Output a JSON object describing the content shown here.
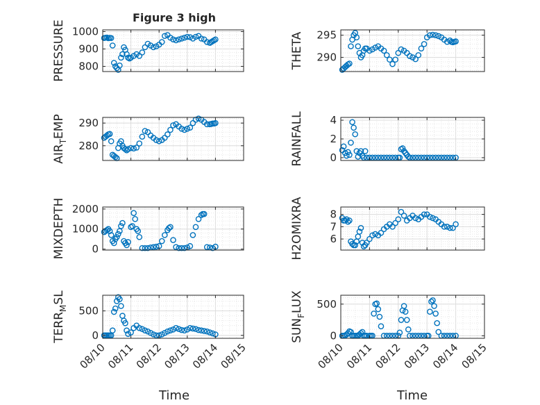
{
  "figure_title": "Figure 3 high",
  "x_axis_title": "Time",
  "x_tick_labels": [
    "08/10",
    "08/11",
    "08/12",
    "08/13",
    "08/14",
    "08/15"
  ],
  "marker_color": "#0072BD",
  "chart_data": [
    {
      "type": "scatter",
      "id": "pressure",
      "ylabel": "PRESSURE",
      "ylabel_sub": null,
      "xlim": [
        0,
        5
      ],
      "ylim": [
        770,
        1010
      ],
      "yticks": [
        800,
        900,
        1000
      ],
      "ytick_labels": [
        "800",
        "900",
        "1000"
      ],
      "x_show_ticklabels": false,
      "grid": true,
      "x": [
        0.05,
        0.1,
        0.15,
        0.2,
        0.25,
        0.3,
        0.35,
        0.4,
        0.45,
        0.5,
        0.55,
        0.6,
        0.65,
        0.7,
        0.75,
        0.8,
        0.85,
        0.9,
        0.95,
        1.0,
        1.1,
        1.2,
        1.3,
        1.4,
        1.5,
        1.6,
        1.7,
        1.8,
        1.9,
        2.0,
        2.1,
        2.2,
        2.3,
        2.4,
        2.5,
        2.6,
        2.7,
        2.8,
        2.9,
        3.0,
        3.1,
        3.2,
        3.3,
        3.4,
        3.5,
        3.6,
        3.7,
        3.8,
        3.85,
        3.9,
        3.95,
        4.0
      ],
      "y": [
        963,
        965,
        966,
        962,
        964,
        963,
        920,
        820,
        800,
        790,
        780,
        805,
        850,
        870,
        910,
        895,
        870,
        850,
        845,
        850,
        860,
        870,
        860,
        880,
        910,
        930,
        920,
        910,
        915,
        925,
        940,
        975,
        980,
        965,
        955,
        950,
        955,
        960,
        965,
        970,
        968,
        960,
        970,
        975,
        960,
        955,
        940,
        935,
        940,
        945,
        950,
        955
      ]
    },
    {
      "type": "scatter",
      "id": "theta",
      "ylabel": "THETA",
      "ylabel_sub": null,
      "xlim": [
        0,
        5
      ],
      "ylim": [
        286.8,
        296.2
      ],
      "yticks": [
        290,
        295
      ],
      "ytick_labels": [
        "290",
        "295"
      ],
      "x_show_ticklabels": false,
      "grid": true,
      "x": [
        0.05,
        0.1,
        0.15,
        0.2,
        0.25,
        0.3,
        0.35,
        0.4,
        0.45,
        0.5,
        0.55,
        0.6,
        0.65,
        0.7,
        0.75,
        0.8,
        0.85,
        0.9,
        1.0,
        1.1,
        1.2,
        1.3,
        1.4,
        1.5,
        1.6,
        1.7,
        1.8,
        1.9,
        2.0,
        2.1,
        2.2,
        2.3,
        2.4,
        2.5,
        2.6,
        2.7,
        2.8,
        2.9,
        3.0,
        3.1,
        3.2,
        3.3,
        3.4,
        3.5,
        3.6,
        3.7,
        3.8,
        3.85,
        3.9,
        3.95,
        4.0
      ],
      "y": [
        287.2,
        287.5,
        287.8,
        288.1,
        288.4,
        288.6,
        292.5,
        294.0,
        295.0,
        295.5,
        294.5,
        292.5,
        291.0,
        290.0,
        290.5,
        291.5,
        292.0,
        292.0,
        291.5,
        291.8,
        292.2,
        292.5,
        292.0,
        291.5,
        290.5,
        289.5,
        288.5,
        289.5,
        291.0,
        291.8,
        291.5,
        291.0,
        290.3,
        290.0,
        289.6,
        290.5,
        292.0,
        293.0,
        294.5,
        295.0,
        295.1,
        295.0,
        294.8,
        294.5,
        294.0,
        293.5,
        293.8,
        293.5,
        293.4,
        293.5,
        293.6
      ]
    },
    {
      "type": "scatter",
      "id": "air_temp",
      "ylabel": "AIR",
      "ylabel_sub": "T",
      "ylabel_suffix": "EMP",
      "xlim": [
        0,
        5
      ],
      "ylim": [
        273.5,
        292.5
      ],
      "yticks": [
        280,
        290
      ],
      "ytick_labels": [
        "280",
        "290"
      ],
      "x_show_ticklabels": false,
      "grid": true,
      "x": [
        0.05,
        0.1,
        0.15,
        0.2,
        0.25,
        0.3,
        0.35,
        0.4,
        0.45,
        0.5,
        0.55,
        0.6,
        0.65,
        0.7,
        0.75,
        0.8,
        0.85,
        0.9,
        1.0,
        1.1,
        1.2,
        1.3,
        1.4,
        1.5,
        1.6,
        1.7,
        1.8,
        1.9,
        2.0,
        2.1,
        2.2,
        2.3,
        2.4,
        2.5,
        2.6,
        2.7,
        2.8,
        2.9,
        3.0,
        3.1,
        3.2,
        3.3,
        3.4,
        3.5,
        3.6,
        3.7,
        3.8,
        3.85,
        3.9,
        3.95,
        4.0
      ],
      "y": [
        283.5,
        284,
        284.5,
        285,
        285.2,
        282,
        276,
        275.5,
        275,
        274.5,
        279,
        281,
        282,
        280,
        279,
        278.5,
        278,
        278.5,
        279,
        278.8,
        279.2,
        281,
        284,
        286.5,
        286,
        284.5,
        283.5,
        282.5,
        282,
        282.5,
        283.5,
        285,
        287,
        289,
        289.5,
        288.5,
        287.5,
        287,
        287.5,
        288,
        290,
        291.5,
        292,
        291.5,
        290.5,
        289.5,
        289.5,
        289.6,
        289.8,
        289.8,
        290
      ]
    },
    {
      "type": "scatter",
      "id": "rainfall",
      "ylabel": "RAINFALL",
      "ylabel_sub": null,
      "xlim": [
        0,
        5
      ],
      "ylim": [
        -0.3,
        4.3
      ],
      "yticks": [
        0,
        2,
        4
      ],
      "ytick_labels": [
        "0",
        "2",
        "4"
      ],
      "x_show_ticklabels": false,
      "grid": true,
      "x": [
        0.05,
        0.1,
        0.15,
        0.2,
        0.25,
        0.3,
        0.35,
        0.4,
        0.45,
        0.5,
        0.55,
        0.6,
        0.65,
        0.7,
        0.75,
        0.8,
        0.85,
        0.9,
        1.0,
        1.1,
        1.2,
        1.3,
        1.4,
        1.5,
        1.6,
        1.7,
        1.8,
        1.9,
        2.0,
        2.05,
        2.1,
        2.15,
        2.2,
        2.25,
        2.3,
        2.35,
        2.4,
        2.5,
        2.6,
        2.7,
        2.8,
        2.9,
        3.0,
        3.1,
        3.2,
        3.3,
        3.4,
        3.5,
        3.6,
        3.7,
        3.8,
        3.9,
        4.0
      ],
      "y": [
        0.8,
        1.2,
        0.5,
        0.2,
        0.6,
        0.3,
        1.6,
        3.8,
        3.2,
        2.5,
        0.7,
        0.1,
        0.5,
        0.7,
        0.2,
        0,
        0.7,
        0,
        0,
        0,
        0,
        0,
        0,
        0,
        0,
        0,
        0,
        0,
        0,
        0,
        0.9,
        1.0,
        0.7,
        0.5,
        0.3,
        0.1,
        0,
        0,
        0,
        0,
        0,
        0,
        0,
        0,
        0,
        0,
        0,
        0,
        0,
        0,
        0,
        0,
        0
      ]
    },
    {
      "type": "scatter",
      "id": "mixdepth",
      "ylabel": "MIXDEPTH",
      "ylabel_sub": null,
      "xlim": [
        0,
        5
      ],
      "ylim": [
        -50,
        2100
      ],
      "yticks": [
        0,
        1000,
        2000
      ],
      "ytick_labels": [
        "0",
        "1000",
        "2000"
      ],
      "x_show_ticklabels": false,
      "grid": true,
      "x": [
        0.05,
        0.1,
        0.15,
        0.2,
        0.25,
        0.3,
        0.35,
        0.4,
        0.45,
        0.5,
        0.55,
        0.6,
        0.65,
        0.7,
        0.75,
        0.8,
        0.85,
        0.9,
        1.0,
        1.05,
        1.1,
        1.15,
        1.2,
        1.25,
        1.3,
        1.4,
        1.5,
        1.6,
        1.7,
        1.8,
        1.9,
        2.0,
        2.1,
        2.2,
        2.3,
        2.35,
        2.4,
        2.5,
        2.6,
        2.7,
        2.8,
        2.9,
        3.0,
        3.1,
        3.2,
        3.3,
        3.4,
        3.5,
        3.55,
        3.6,
        3.7,
        3.8,
        3.9,
        4.0
      ],
      "y": [
        850,
        900,
        950,
        1000,
        900,
        700,
        400,
        300,
        500,
        600,
        750,
        900,
        1150,
        1300,
        400,
        300,
        200,
        350,
        1100,
        1150,
        1800,
        1500,
        1000,
        900,
        600,
        50,
        50,
        50,
        80,
        100,
        120,
        150,
        400,
        700,
        950,
        1050,
        1100,
        450,
        100,
        50,
        50,
        50,
        80,
        150,
        700,
        1100,
        1500,
        1700,
        1750,
        1750,
        100,
        80,
        50,
        120
      ]
    },
    {
      "type": "scatter",
      "id": "h2omixra",
      "ylabel": "H2OMIXRA",
      "ylabel_sub": null,
      "xlim": [
        0,
        5
      ],
      "ylim": [
        5.1,
        8.6
      ],
      "yticks": [
        6,
        7,
        8
      ],
      "ytick_labels": [
        "6",
        "7",
        "8"
      ],
      "x_show_ticklabels": false,
      "grid": true,
      "x": [
        0.05,
        0.1,
        0.15,
        0.2,
        0.25,
        0.3,
        0.35,
        0.4,
        0.45,
        0.5,
        0.55,
        0.6,
        0.65,
        0.7,
        0.75,
        0.8,
        0.85,
        0.9,
        1.0,
        1.1,
        1.2,
        1.3,
        1.4,
        1.5,
        1.6,
        1.7,
        1.8,
        1.9,
        2.0,
        2.1,
        2.2,
        2.3,
        2.4,
        2.5,
        2.6,
        2.7,
        2.8,
        2.9,
        3.0,
        3.1,
        3.2,
        3.3,
        3.4,
        3.5,
        3.6,
        3.7,
        3.8,
        3.9,
        4.0
      ],
      "y": [
        7.7,
        7.5,
        7.5,
        7.6,
        7.4,
        7.5,
        5.8,
        5.6,
        5.5,
        5.5,
        5.8,
        6.2,
        6.6,
        6.9,
        5.7,
        5.4,
        5.5,
        5.7,
        6.0,
        6.3,
        6.4,
        6.3,
        6.5,
        6.8,
        7.0,
        7.2,
        7.0,
        7.3,
        7.6,
        8.2,
        7.9,
        7.5,
        7.7,
        7.9,
        7.7,
        7.6,
        7.8,
        8.0,
        8.0,
        7.8,
        7.7,
        7.6,
        7.4,
        7.2,
        7.0,
        7.0,
        6.9,
        6.9,
        7.2
      ]
    },
    {
      "type": "scatter",
      "id": "terr_msl",
      "ylabel": "TERR",
      "ylabel_sub": "M",
      "ylabel_suffix": "SL",
      "xlim": [
        0,
        5
      ],
      "ylim": [
        -60,
        820
      ],
      "yticks": [
        0,
        500
      ],
      "ytick_labels": [
        "0",
        "500"
      ],
      "x_show_ticklabels": true,
      "grid": true,
      "x": [
        0.05,
        0.1,
        0.15,
        0.2,
        0.25,
        0.3,
        0.35,
        0.4,
        0.45,
        0.5,
        0.55,
        0.6,
        0.65,
        0.7,
        0.75,
        0.8,
        0.85,
        0.9,
        1.0,
        1.1,
        1.2,
        1.3,
        1.4,
        1.5,
        1.6,
        1.7,
        1.8,
        1.9,
        2.0,
        2.1,
        2.2,
        2.3,
        2.4,
        2.5,
        2.6,
        2.7,
        2.8,
        2.9,
        3.0,
        3.1,
        3.2,
        3.3,
        3.4,
        3.5,
        3.6,
        3.7,
        3.8,
        3.9,
        4.0
      ],
      "y": [
        0,
        0,
        0,
        0,
        0,
        0,
        100,
        480,
        550,
        700,
        780,
        740,
        600,
        400,
        300,
        250,
        100,
        30,
        60,
        150,
        200,
        150,
        130,
        100,
        80,
        50,
        20,
        0,
        0,
        20,
        50,
        80,
        100,
        120,
        150,
        130,
        110,
        100,
        120,
        150,
        140,
        130,
        110,
        100,
        90,
        80,
        60,
        40,
        20
      ]
    },
    {
      "type": "scatter",
      "id": "sun_flux",
      "ylabel": "SUN",
      "ylabel_sub": "F",
      "ylabel_suffix": "LUX",
      "xlim": [
        0,
        5
      ],
      "ylim": [
        -40,
        640
      ],
      "yticks": [
        0,
        500
      ],
      "ytick_labels": [
        "0",
        "500"
      ],
      "x_show_ticklabels": true,
      "grid": true,
      "x": [
        0.05,
        0.1,
        0.15,
        0.2,
        0.25,
        0.3,
        0.35,
        0.4,
        0.45,
        0.5,
        0.55,
        0.6,
        0.65,
        0.7,
        0.75,
        0.8,
        0.85,
        0.9,
        1.0,
        1.05,
        1.1,
        1.15,
        1.2,
        1.25,
        1.3,
        1.35,
        1.4,
        1.5,
        1.6,
        1.7,
        1.8,
        1.9,
        2.0,
        2.05,
        2.1,
        2.15,
        2.2,
        2.25,
        2.3,
        2.35,
        2.4,
        2.5,
        2.6,
        2.7,
        2.8,
        2.9,
        3.0,
        3.05,
        3.1,
        3.15,
        3.2,
        3.25,
        3.3,
        3.35,
        3.4,
        3.5,
        3.6,
        3.7,
        3.8,
        3.9,
        4.0
      ],
      "y": [
        0,
        0,
        5,
        20,
        40,
        70,
        60,
        0,
        0,
        0,
        0,
        0,
        20,
        40,
        60,
        0,
        0,
        0,
        0,
        0,
        0,
        350,
        500,
        510,
        420,
        300,
        150,
        0,
        0,
        0,
        0,
        0,
        0,
        50,
        250,
        400,
        470,
        380,
        250,
        100,
        0,
        0,
        0,
        0,
        0,
        0,
        0,
        0,
        380,
        540,
        560,
        470,
        350,
        200,
        60,
        0,
        0,
        0,
        0,
        0,
        0
      ]
    }
  ]
}
